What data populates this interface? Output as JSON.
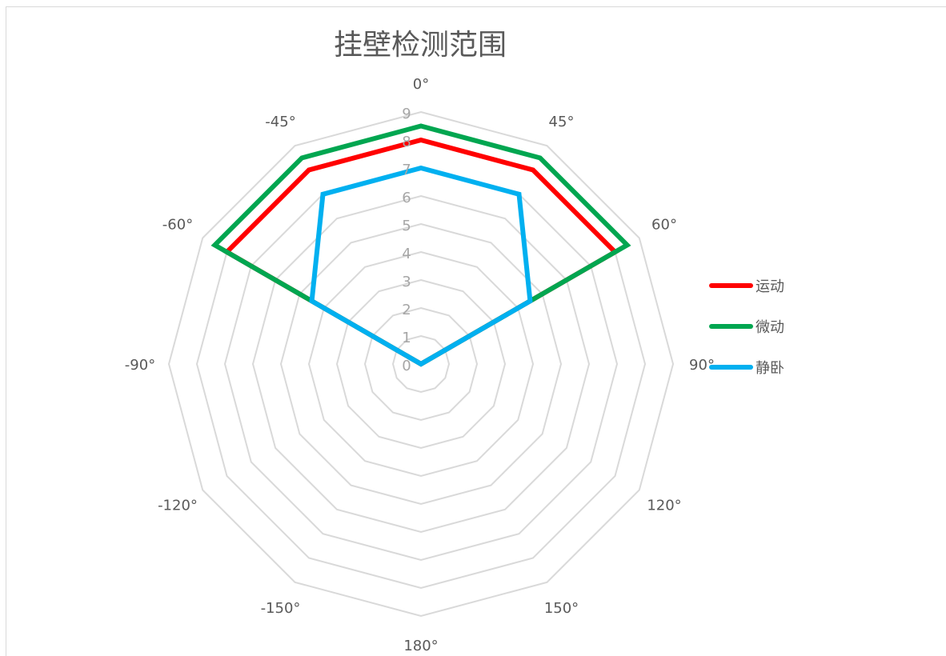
{
  "chart_data": {
    "type": "radar",
    "title": "挂壁检测范围",
    "categories": [
      "0°",
      "45°",
      "60°",
      "90°",
      "120°",
      "150°",
      "180°",
      "-150°",
      "-120°",
      "-90°",
      "-60°",
      "-45°"
    ],
    "radial_ticks": [
      "0",
      "1",
      "2",
      "3",
      "4",
      "5",
      "6",
      "7",
      "8",
      "9"
    ],
    "r_range": [
      0,
      9
    ],
    "grid": true,
    "legend_position": "right",
    "series": [
      {
        "name": "运动",
        "color": "#ff0000",
        "values": [
          8,
          8,
          8,
          0,
          0,
          0,
          0,
          0,
          0,
          0,
          8,
          8
        ]
      },
      {
        "name": "微动",
        "color": "#00a650",
        "values": [
          8.5,
          8.5,
          8.5,
          0,
          0,
          0,
          0,
          0,
          0,
          0,
          8.5,
          8.5
        ]
      },
      {
        "name": "静卧",
        "color": "#00b0f0",
        "values": [
          7,
          7,
          4.5,
          0,
          0,
          0,
          0,
          0,
          0,
          0,
          4.5,
          7
        ]
      }
    ]
  }
}
